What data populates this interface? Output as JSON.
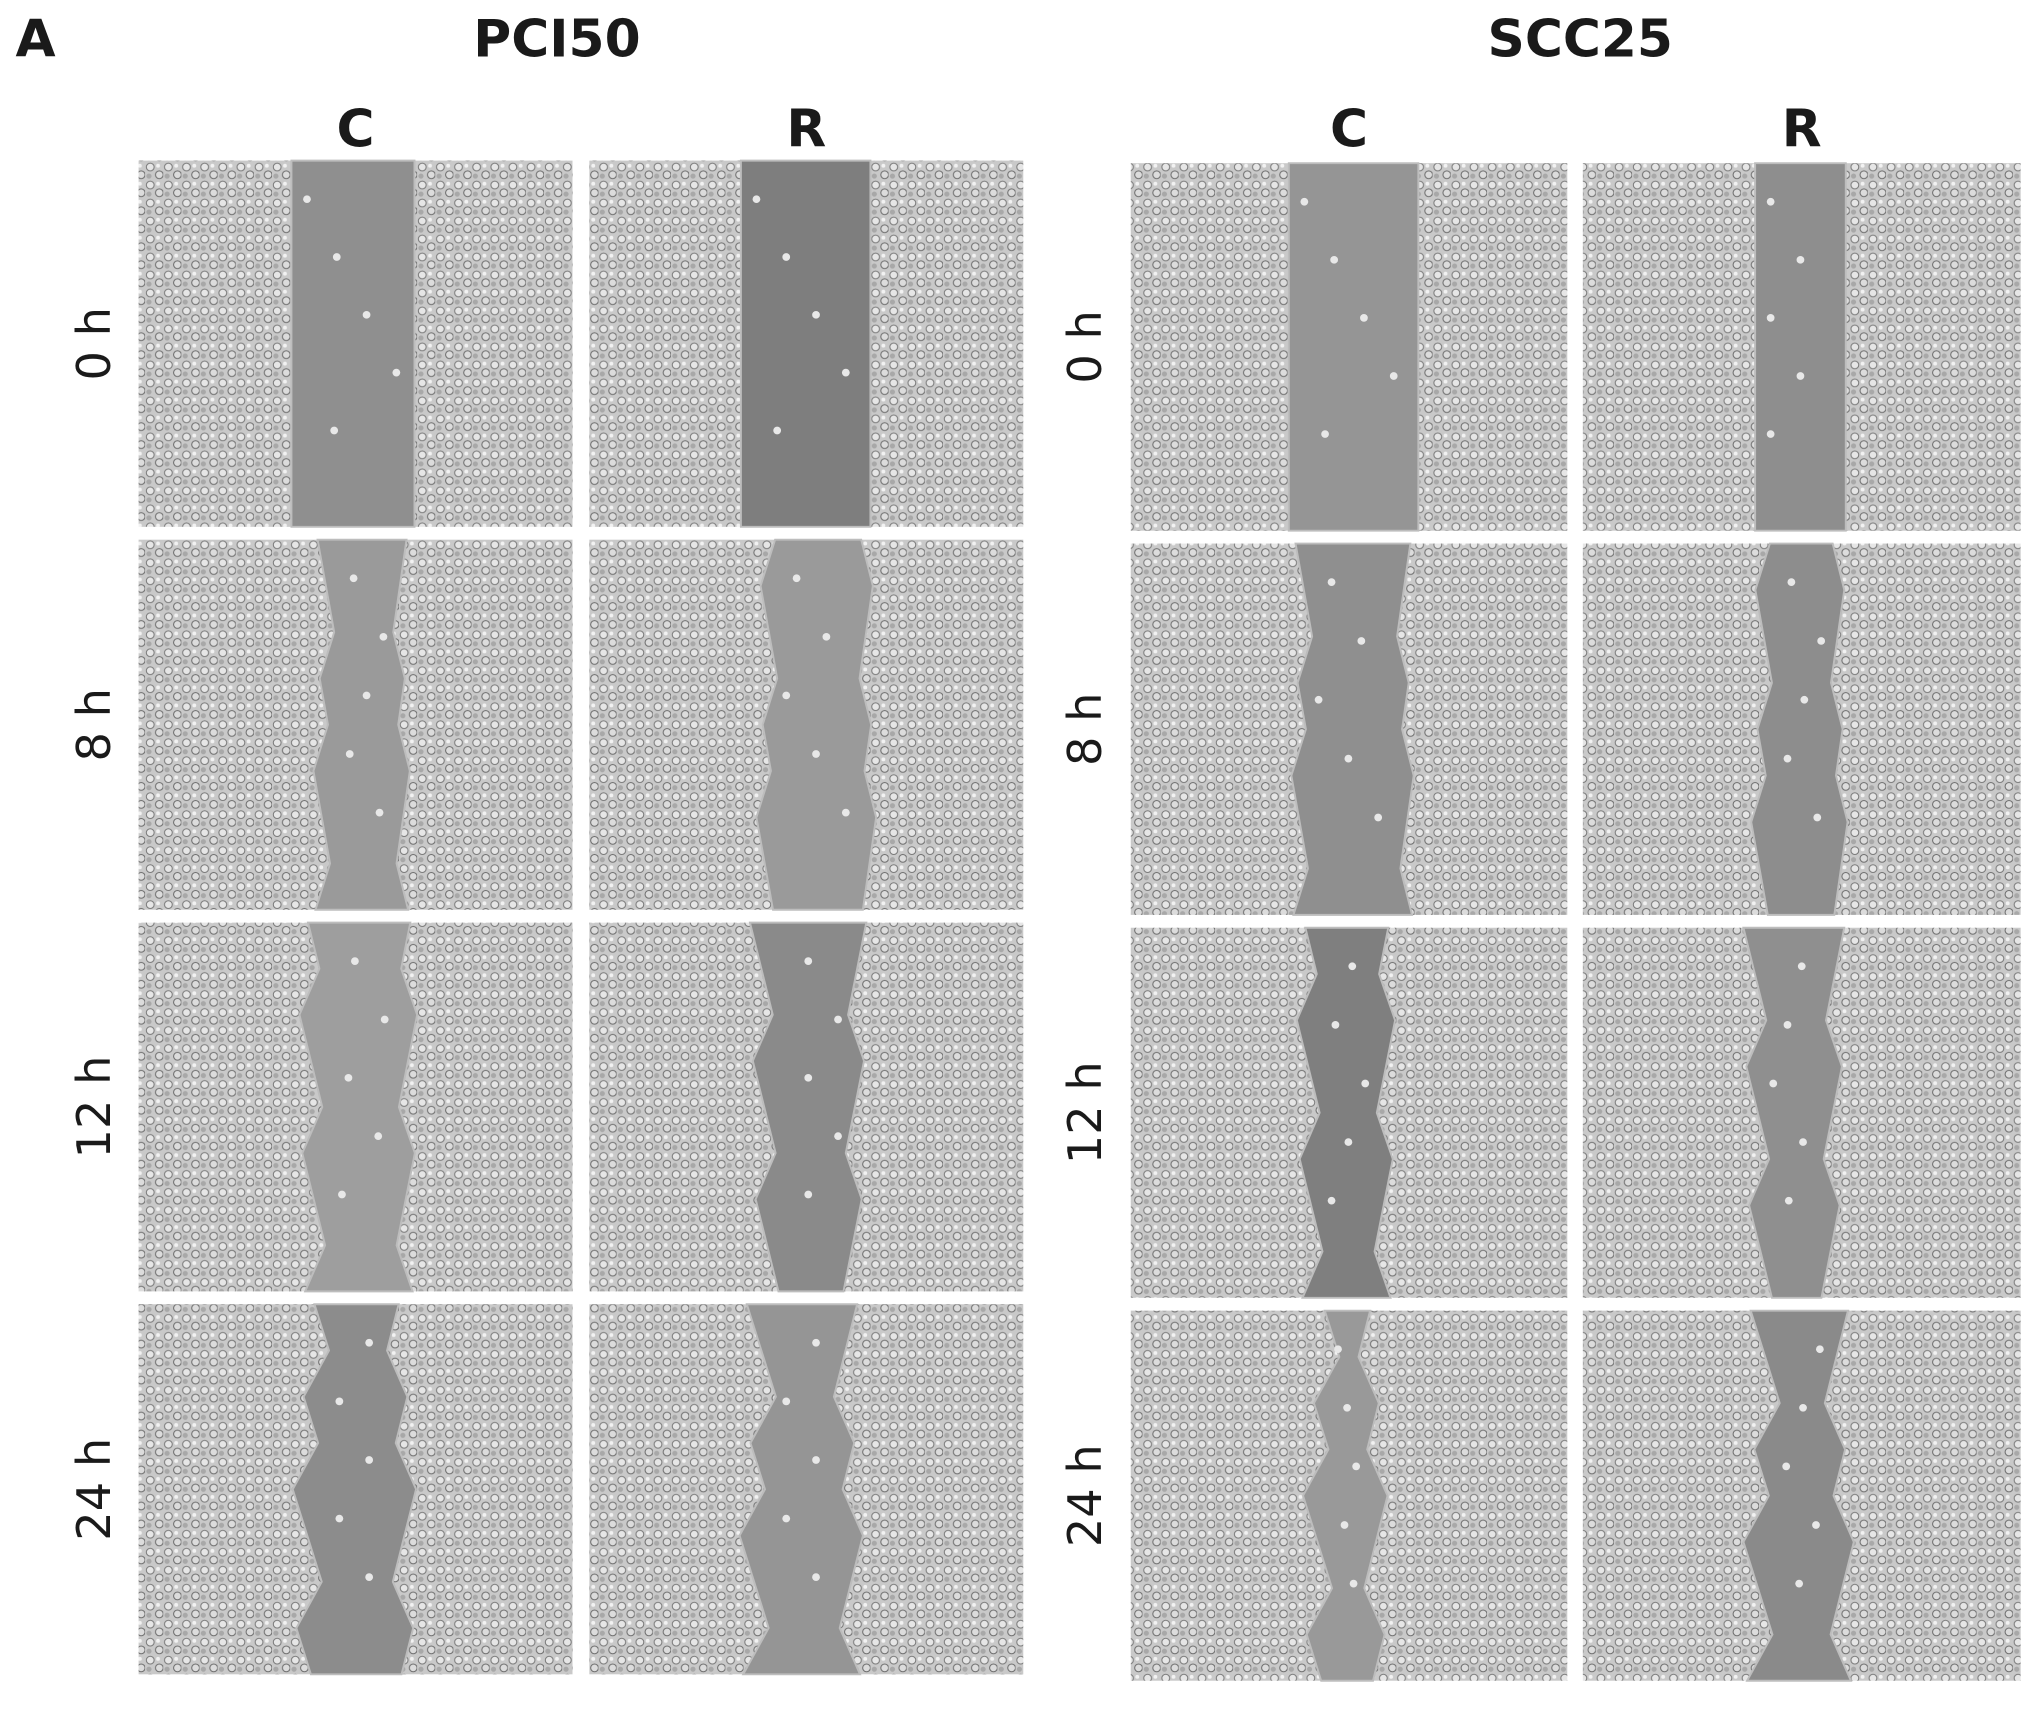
{
  "panel_label": "A",
  "groups": [
    {
      "title": "PCI50",
      "columns": [
        "C",
        "R"
      ],
      "rows": [
        "0 h",
        "8 h",
        "12 h",
        "24 h"
      ]
    },
    {
      "title": "SCC25",
      "columns": [
        "C",
        "R"
      ],
      "rows": [
        "0 h",
        "8 h",
        "12 h",
        "24 h"
      ]
    }
  ]
}
